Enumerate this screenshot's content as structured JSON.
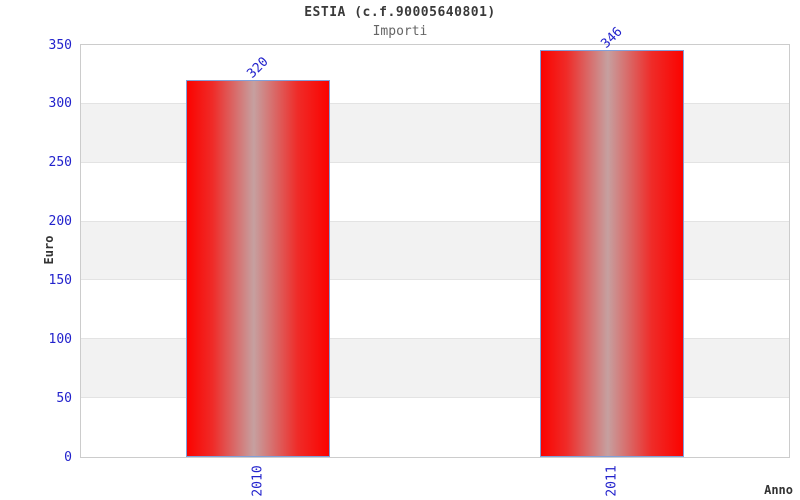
{
  "chart_data": {
    "type": "bar",
    "title": "ESTIA (c.f.90005640801)",
    "subtitle": "Importi",
    "categories": [
      "2010",
      "2011"
    ],
    "values": [
      320,
      346
    ],
    "xlabel": "Anno",
    "ylabel": "Euro",
    "ylim": [
      0,
      350
    ],
    "yticks": [
      0,
      50,
      100,
      150,
      200,
      250,
      300,
      350
    ],
    "grid": "alternating-horizontal-bands",
    "legend_position": "none",
    "colors": {
      "bar_red": "#fb0300",
      "bar_red_soft": "#ef2b28",
      "bar_center_highlight": "#c6a0a0",
      "bar_border": "#7f9fd9",
      "tick_label_blue": "#2222cc",
      "band_gray": "#f2f2f2",
      "band_white": "#ffffff",
      "plot_border": "#cccccc",
      "gridline": "#e3e3e3",
      "title_text": "#3a3a3a",
      "subtitle_text": "#666666",
      "axis_title_text": "#333333"
    }
  }
}
